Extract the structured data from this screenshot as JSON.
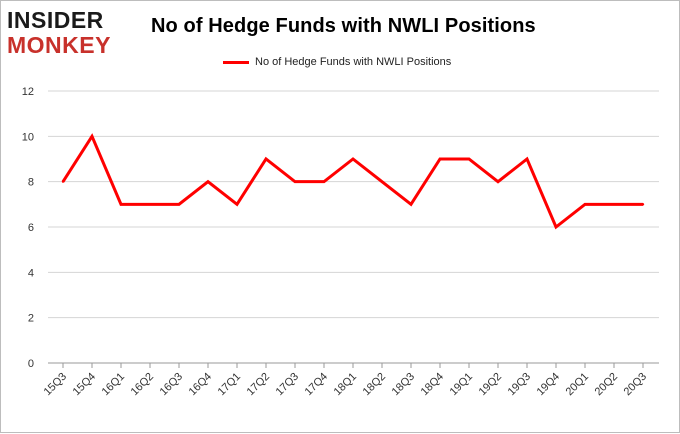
{
  "logo": {
    "line1": "INSIDER",
    "line2": "MONKEY"
  },
  "chart_data": {
    "type": "line",
    "title": "No of Hedge Funds with NWLI Positions",
    "xlabel": "",
    "ylabel": "",
    "categories": [
      "15Q3",
      "15Q4",
      "16Q1",
      "16Q2",
      "16Q3",
      "16Q4",
      "17Q1",
      "17Q2",
      "17Q3",
      "17Q4",
      "18Q1",
      "18Q2",
      "18Q3",
      "18Q4",
      "19Q1",
      "19Q2",
      "19Q3",
      "19Q4",
      "20Q1",
      "20Q2",
      "20Q3"
    ],
    "series": [
      {
        "name": "No of Hedge Funds with NWLI Positions",
        "values": [
          8,
          10,
          7,
          7,
          7,
          8,
          7,
          9,
          8,
          8,
          9,
          8,
          7,
          9,
          9,
          8,
          9,
          6,
          7,
          7,
          7
        ],
        "color": "#ff0000"
      }
    ],
    "ylim": [
      0,
      12
    ],
    "yticks": [
      0,
      2,
      4,
      6,
      8,
      10,
      12
    ],
    "grid": true,
    "legend": "top-center"
  }
}
